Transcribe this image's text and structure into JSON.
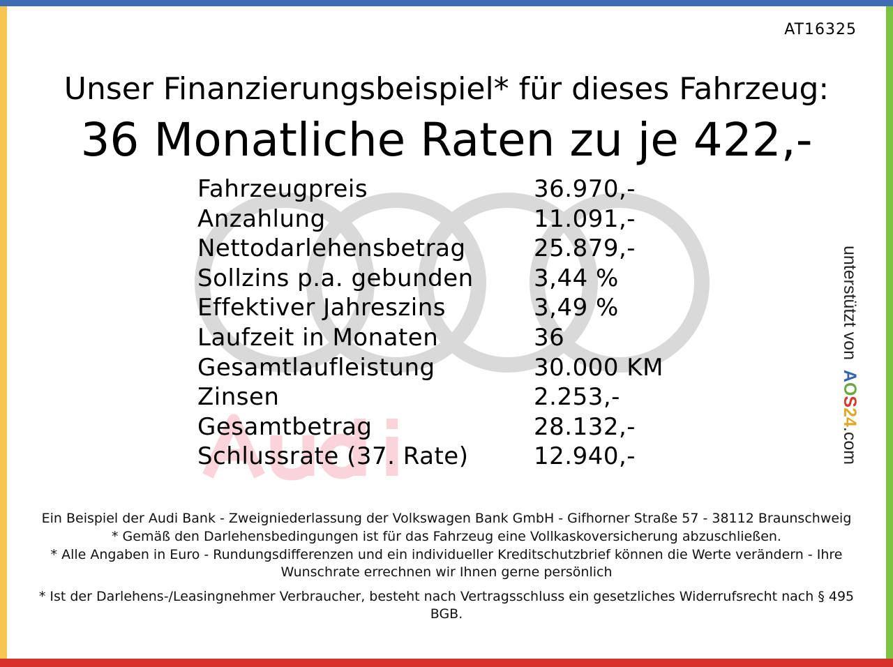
{
  "code": "AT16325",
  "headline": "Unser Finanzierungsbeispiel* für dieses Fahrzeug:",
  "rate_line": "36 Monatliche Raten zu je 422,-",
  "watermark": {
    "brand": "Audi",
    "ring_color": "#d9d9d9",
    "text_color": "#fbd3da"
  },
  "rows": [
    {
      "label": "Fahrzeugpreis",
      "value": "36.970,-"
    },
    {
      "label": "Anzahlung",
      "value": "11.091,-"
    },
    {
      "label": "Nettodarlehensbetrag",
      "value": "25.879,-"
    },
    {
      "label": "Sollzins p.a. gebunden",
      "value": "3,44 %"
    },
    {
      "label": "Effektiver Jahreszins",
      "value": "3,49 %"
    },
    {
      "label": "Laufzeit in Monaten",
      "value": "36"
    },
    {
      "label": "Gesamtlaufleistung",
      "value": "30.000 KM"
    },
    {
      "label": "Zinsen",
      "value": "2.253,-"
    },
    {
      "label": "Gesamtbetrag",
      "value": "28.132,-"
    },
    {
      "label": "Schlussrate (37. Rate)",
      "value": "12.940,-"
    }
  ],
  "side": {
    "prefix": "unterstützt von",
    "logo": [
      "A",
      "O",
      "S",
      "2",
      "4"
    ],
    "suffix": ".com",
    "logo_colors": [
      "#3465b0",
      "#6aa842",
      "#d23a2f",
      "#e0a82a",
      "#e0a82a"
    ]
  },
  "footer": [
    "Ein Beispiel der Audi Bank - Zweigniederlassung der Volkswagen Bank GmbH - Gifhorner Straße 57 - 38112 Braunschweig",
    "* Gemäß den Darlehensbedingungen ist für das Fahrzeug eine Vollkaskoversicherung abzuschließen.",
    "* Alle Angaben in Euro - Rundungsdifferenzen und ein individueller Kreditschutzbrief können die Werte verändern - Ihre Wunschrate errechnen wir Ihnen gerne persönlich",
    "* Ist der Darlehens-/Leasingnehmer Verbraucher, besteht nach Vertragsschluss ein gesetzliches Widerrufsrecht nach § 495 BGB."
  ],
  "border_colors": {
    "top": "#3f6db5",
    "left": "#f7c552",
    "right": "#7cc243",
    "bottom": "#d8302a"
  }
}
